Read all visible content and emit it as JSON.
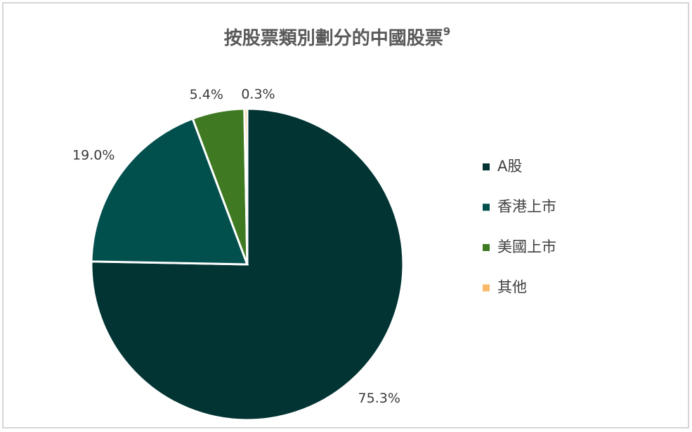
{
  "chart_data": {
    "type": "pie",
    "title": "按股票類別劃分的中國股票",
    "title_note": "9",
    "categories": [
      "A股",
      "香港上市",
      "美國上市",
      "其他"
    ],
    "values": [
      75.3,
      19.0,
      5.4,
      0.3
    ],
    "value_labels": [
      "75.3%",
      "19.0%",
      "5.4%",
      "0.3%"
    ],
    "colors": [
      "#013433",
      "#02504e",
      "#3f7a22",
      "#f9b96a"
    ],
    "legend": "right"
  }
}
